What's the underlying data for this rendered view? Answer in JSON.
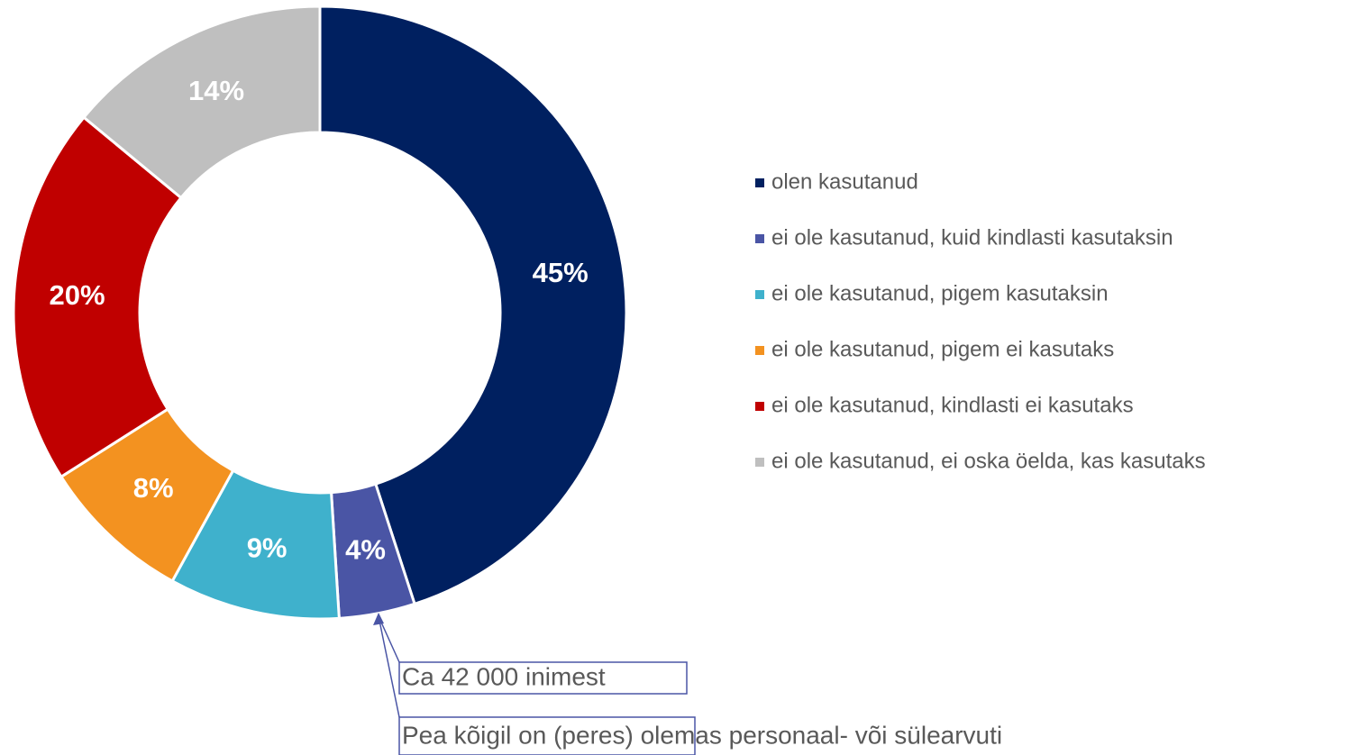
{
  "chart_data": {
    "type": "donut",
    "categories": [
      "olen kasutanud",
      "ei ole kasutanud, kuid kindlasti kasutaksin",
      "ei ole kasutanud, pigem kasutaksin",
      "ei ole kasutanud, pigem ei kasutaks",
      "ei ole kasutanud, kindlasti ei kasutaks",
      "ei ole kasutanud, ei oska öelda, kas kasutaks"
    ],
    "values": [
      45,
      4,
      9,
      8,
      20,
      14
    ],
    "value_labels": [
      "45%",
      "4%",
      "9%",
      "8%",
      "20%",
      "14%"
    ],
    "colors": [
      "#002060",
      "#4a55a5",
      "#3fb1cc",
      "#f39220",
      "#c00000",
      "#bfbfbf"
    ],
    "legend": "right",
    "annotations": [
      "Ca 42 000 inimest",
      "Pea kõigil on (peres) olemas personaal- või sülearvuti"
    ]
  }
}
